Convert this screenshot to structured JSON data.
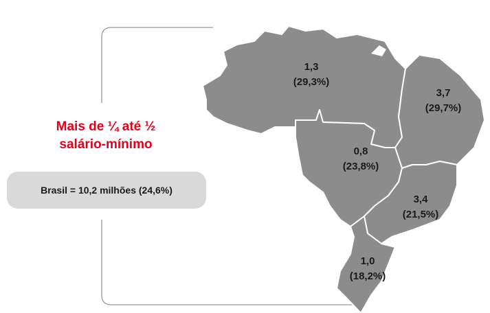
{
  "title": [
    "Mais de ¼ até ½",
    "salário-mínimo"
  ],
  "summary": "Brasil = 10,2 milhões (24,6%)",
  "regions": [
    {
      "value": "1,3",
      "share": "(29,3%)"
    },
    {
      "value": "3,7",
      "share": "(29,7%)"
    },
    {
      "value": "0,8",
      "share": "(23,8%)"
    },
    {
      "value": "3,4",
      "share": "(21,5%)"
    },
    {
      "value": "1,0",
      "share": "(18,2%)"
    }
  ]
}
